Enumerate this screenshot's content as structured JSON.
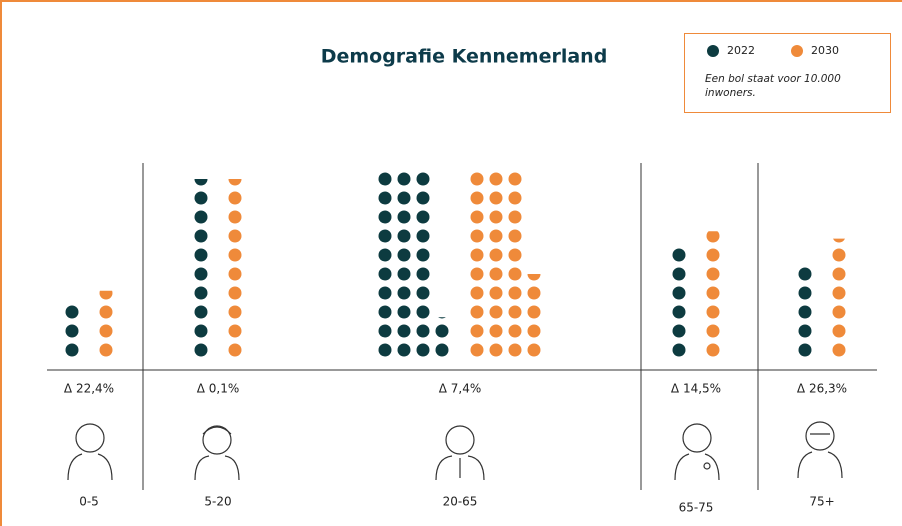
{
  "chart_data": {
    "type": "pictogram",
    "title": "Demografie Kennemerland",
    "note": "Een bol staat voor  10.000 inwoners.",
    "categories": [
      "0-5",
      "5-20",
      "20-65",
      "65-75",
      "75+"
    ],
    "changes": [
      "Δ 22,4%",
      "Δ 0,1%",
      "Δ 7,4%",
      "Δ 14,5%",
      "Δ 26,3%"
    ],
    "series": [
      {
        "name": "2022",
        "color": "#0d3b40",
        "values": [
          3.0,
          9.5,
          32.1,
          6.0,
          5.0
        ]
      },
      {
        "name": "2030",
        "color": "#ef8a3a",
        "values": [
          3.67,
          9.5,
          34.5,
          6.87,
          6.3
        ]
      }
    ]
  }
}
